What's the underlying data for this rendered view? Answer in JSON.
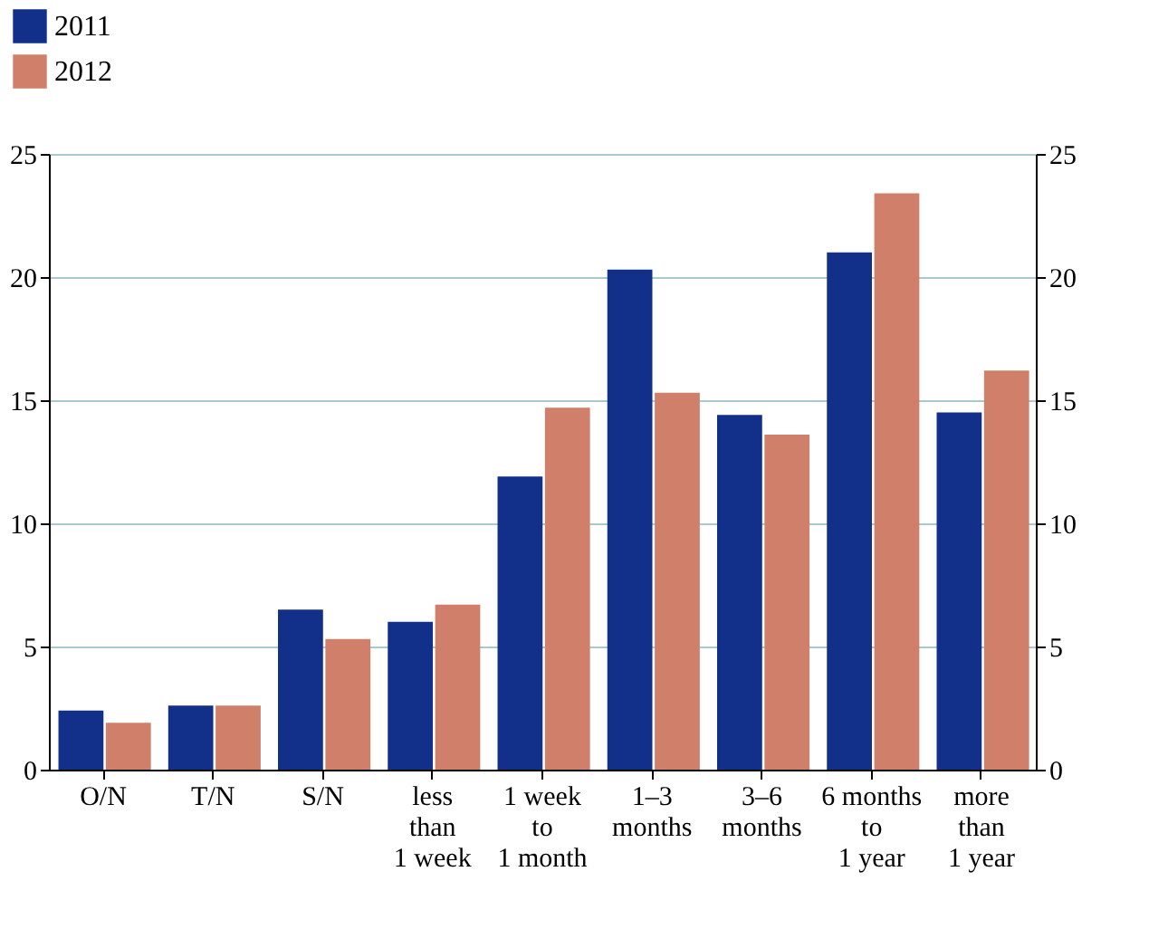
{
  "chart_data": {
    "type": "bar",
    "categories": [
      "O/N",
      "T/N",
      "S/N",
      "less\nthan\n1 week",
      "1 week\nto\n1 month",
      "1–3\nmonths",
      "3–6\nmonths",
      "6 months\nto\n1 year",
      "more\nthan\n1 year"
    ],
    "series": [
      {
        "name": "2011",
        "color": "#12308a",
        "values": [
          2.4,
          2.6,
          6.5,
          6.0,
          11.9,
          20.3,
          14.4,
          21.0,
          14.5
        ]
      },
      {
        "name": "2012",
        "color": "#cf7f6a",
        "values": [
          1.9,
          2.6,
          5.3,
          6.7,
          14.7,
          15.3,
          13.6,
          23.4,
          16.2
        ]
      }
    ],
    "ylim": [
      0,
      25
    ],
    "yticks": [
      0,
      5,
      10,
      15,
      20,
      25
    ],
    "y2lim": [
      0,
      25
    ],
    "y2ticks": [
      0,
      5,
      10,
      15,
      20,
      25
    ],
    "grid": "y",
    "legend": "top left"
  }
}
